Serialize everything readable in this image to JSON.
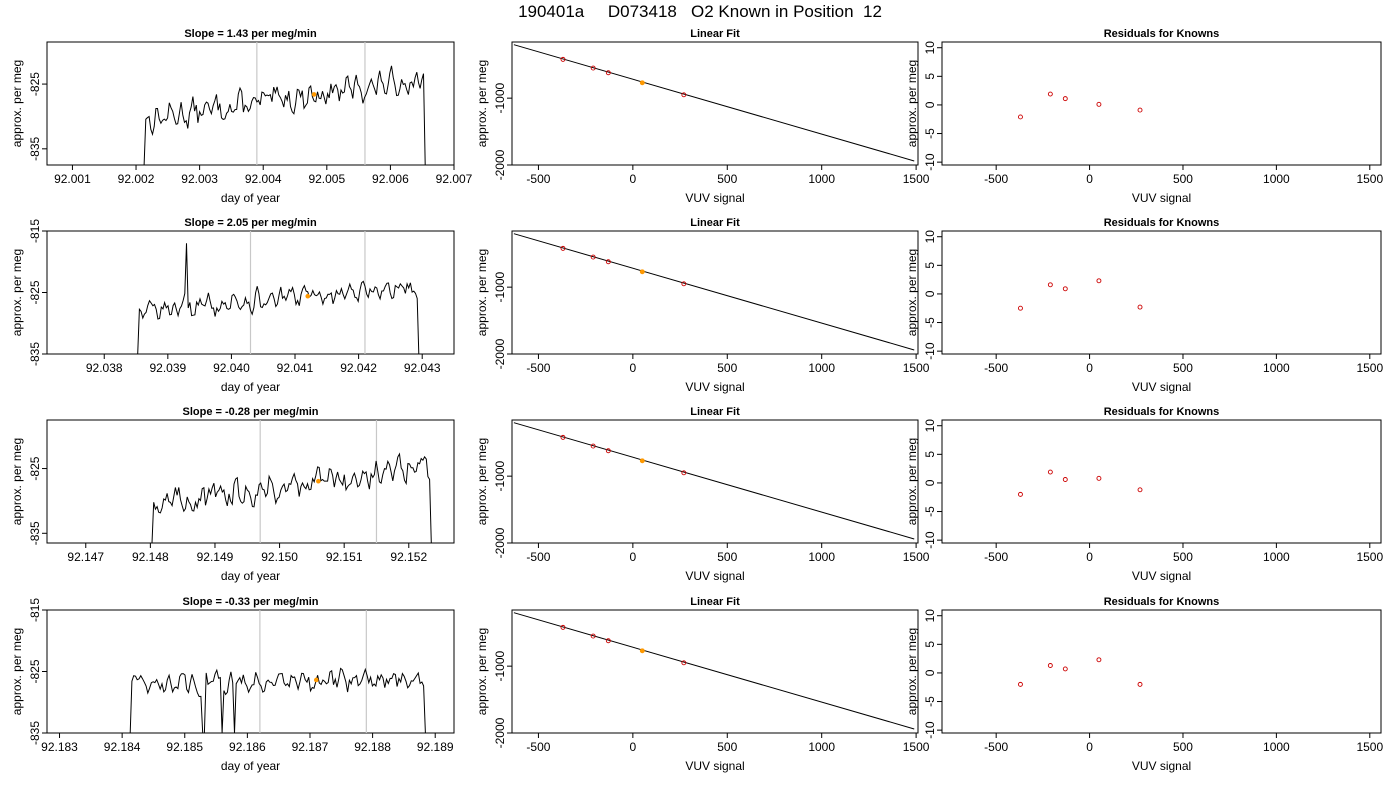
{
  "figure_title": "190401a     D073418   O2 Known in Position  12",
  "colors": {
    "trace": "#000000",
    "marker": "#ff9900",
    "grid_line": "#c8c8c8",
    "fit_points": "#cc0000"
  },
  "chart_data": [
    {
      "type": "line",
      "title": "Slope =  1.43  per meg/min",
      "xlabel": "day of year",
      "ylabel": "approx. per meg",
      "xlim": [
        92.0006,
        92.007
      ],
      "ylim": [
        -837.5,
        -818.5
      ],
      "xticks": [
        "92.001",
        "92.002",
        "92.003",
        "92.004",
        "92.005",
        "92.006",
        "92.007"
      ],
      "yticks": [
        "-825",
        "-835"
      ],
      "data_start": 92.0021,
      "data_end": 92.0066,
      "vlines": [
        92.0039,
        92.0056
      ],
      "marker_x": 92.0048,
      "baseline": -830.5,
      "trend": 6.5,
      "noise": 2.2,
      "spikes": [],
      "dips": []
    },
    {
      "type": "line",
      "title": "Slope =  2.05  per meg/min",
      "xlabel": "day of year",
      "ylabel": "approx. per meg",
      "xlim": [
        92.0371,
        92.0435
      ],
      "ylim": [
        -835,
        -815
      ],
      "xticks": [
        "92.038",
        "92.039",
        "92.040",
        "92.041",
        "92.042",
        "92.043"
      ],
      "yticks": [
        "-815",
        "-825",
        "-835"
      ],
      "data_start": 92.0385,
      "data_end": 92.043,
      "vlines": [
        92.0403,
        92.0421
      ],
      "marker_x": 92.0412,
      "baseline": -828,
      "trend": 4,
      "noise": 1.8,
      "spikes": [
        92.0393
      ],
      "dips": []
    },
    {
      "type": "line",
      "title": "Slope =  -0.28  per meg/min",
      "xlabel": "day of year",
      "ylabel": "approx. per meg",
      "xlim": [
        92.1464,
        92.1527
      ],
      "ylim": [
        -836.5,
        -817.5
      ],
      "xticks": [
        "92.147",
        "92.148",
        "92.149",
        "92.150",
        "92.151",
        "92.152"
      ],
      "yticks": [
        "-825",
        "-835"
      ],
      "data_start": 92.148,
      "data_end": 92.1524,
      "vlines": [
        92.1497,
        92.1515
      ],
      "marker_x": 92.1506,
      "baseline": -830.5,
      "trend": 6,
      "noise": 2.2,
      "spikes": [],
      "dips": []
    },
    {
      "type": "line",
      "title": "Slope =  -0.33  per meg/min",
      "xlabel": "day of year",
      "ylabel": "approx. per meg",
      "xlim": [
        92.1828,
        92.1893
      ],
      "ylim": [
        -835,
        -815
      ],
      "xticks": [
        "92.183",
        "92.184",
        "92.185",
        "92.186",
        "92.187",
        "92.188",
        "92.189"
      ],
      "yticks": [
        "-815",
        "-825",
        "-835"
      ],
      "data_start": 92.1841,
      "data_end": 92.1889,
      "vlines": [
        92.1862,
        92.1879
      ],
      "marker_x": 92.1871,
      "baseline": -827,
      "trend": 1,
      "noise": 1.8,
      "spikes": [],
      "dips": [
        92.1853,
        92.1856,
        92.1858
      ]
    },
    {
      "type": "line",
      "title": "Linear Fit",
      "xlabel": "VUV signal",
      "ylabel": "approx. per meg",
      "xlim": [
        -640,
        1510
      ],
      "ylim": [
        -2000,
        -160
      ],
      "xticks": [
        "-500",
        "0",
        "500",
        "1000",
        "1500"
      ],
      "yticks": [
        "-1000",
        "-2000"
      ],
      "line": {
        "x": [
          -630,
          1490
        ],
        "y": [
          -200,
          -1940
        ]
      },
      "points": [
        {
          "x": -370,
          "y": -420
        },
        {
          "x": -210,
          "y": -550
        },
        {
          "x": -130,
          "y": -620
        },
        {
          "x": 50,
          "y": -770
        },
        {
          "x": 270,
          "y": -950
        }
      ],
      "highlight_index": 3
    },
    {
      "type": "line",
      "title": "Linear Fit",
      "xlabel": "VUV signal",
      "ylabel": "approx. per meg",
      "xlim": [
        -640,
        1510
      ],
      "ylim": [
        -2000,
        -160
      ],
      "xticks": [
        "-500",
        "0",
        "500",
        "1000",
        "1500"
      ],
      "yticks": [
        "-1000",
        "-2000"
      ],
      "line": {
        "x": [
          -630,
          1490
        ],
        "y": [
          -200,
          -1940
        ]
      },
      "points": [
        {
          "x": -370,
          "y": -420
        },
        {
          "x": -210,
          "y": -550
        },
        {
          "x": -130,
          "y": -620
        },
        {
          "x": 50,
          "y": -770
        },
        {
          "x": 270,
          "y": -950
        }
      ],
      "highlight_index": 3
    },
    {
      "type": "line",
      "title": "Linear Fit",
      "xlabel": "VUV signal",
      "ylabel": "approx. per meg",
      "xlim": [
        -640,
        1510
      ],
      "ylim": [
        -2000,
        -160
      ],
      "xticks": [
        "-500",
        "0",
        "500",
        "1000",
        "1500"
      ],
      "yticks": [
        "-1000",
        "-2000"
      ],
      "line": {
        "x": [
          -630,
          1490
        ],
        "y": [
          -200,
          -1940
        ]
      },
      "points": [
        {
          "x": -370,
          "y": -420
        },
        {
          "x": -210,
          "y": -550
        },
        {
          "x": -130,
          "y": -620
        },
        {
          "x": 50,
          "y": -770
        },
        {
          "x": 270,
          "y": -950
        }
      ],
      "highlight_index": 3
    },
    {
      "type": "line",
      "title": "Linear Fit",
      "xlabel": "VUV signal",
      "ylabel": "approx. per meg",
      "xlim": [
        -640,
        1510
      ],
      "ylim": [
        -2000,
        -160
      ],
      "xticks": [
        "-500",
        "0",
        "500",
        "1000",
        "1500"
      ],
      "yticks": [
        "-1000",
        "-2000"
      ],
      "line": {
        "x": [
          -630,
          1490
        ],
        "y": [
          -200,
          -1940
        ]
      },
      "points": [
        {
          "x": -370,
          "y": -420
        },
        {
          "x": -210,
          "y": -550
        },
        {
          "x": -130,
          "y": -620
        },
        {
          "x": 50,
          "y": -770
        },
        {
          "x": 270,
          "y": -950
        }
      ],
      "highlight_index": 3
    },
    {
      "type": "scatter",
      "title": "Residuals for Knowns",
      "xlabel": "VUV signal",
      "ylabel": "approx. per meg",
      "xlim": [
        -790,
        1560
      ],
      "ylim": [
        -10.5,
        11
      ],
      "xticks": [
        "-500",
        "0",
        "500",
        "1000",
        "1500"
      ],
      "yticks": [
        "10",
        "5",
        "0",
        "-5",
        "-10"
      ],
      "points": [
        {
          "x": -370,
          "y": -2.1
        },
        {
          "x": -210,
          "y": 1.9
        },
        {
          "x": -130,
          "y": 1.1
        },
        {
          "x": 50,
          "y": 0.1
        },
        {
          "x": 270,
          "y": -0.9
        }
      ]
    },
    {
      "type": "scatter",
      "title": "Residuals for Knowns",
      "xlabel": "VUV signal",
      "ylabel": "approx. per meg",
      "xlim": [
        -790,
        1560
      ],
      "ylim": [
        -10.5,
        11
      ],
      "xticks": [
        "-500",
        "0",
        "500",
        "1000",
        "1500"
      ],
      "yticks": [
        "10",
        "5",
        "0",
        "-5",
        "-10"
      ],
      "points": [
        {
          "x": -370,
          "y": -2.5
        },
        {
          "x": -210,
          "y": 1.6
        },
        {
          "x": -130,
          "y": 0.9
        },
        {
          "x": 50,
          "y": 2.3
        },
        {
          "x": 270,
          "y": -2.3
        }
      ]
    },
    {
      "type": "scatter",
      "title": "Residuals for Knowns",
      "xlabel": "VUV signal",
      "ylabel": "approx. per meg",
      "xlim": [
        -790,
        1560
      ],
      "ylim": [
        -10.5,
        11
      ],
      "xticks": [
        "-500",
        "0",
        "500",
        "1000",
        "1500"
      ],
      "yticks": [
        "10",
        "5",
        "0",
        "-5",
        "-10"
      ],
      "points": [
        {
          "x": -370,
          "y": -2.0
        },
        {
          "x": -210,
          "y": 1.9
        },
        {
          "x": -130,
          "y": 0.6
        },
        {
          "x": 50,
          "y": 0.8
        },
        {
          "x": 270,
          "y": -1.2
        }
      ]
    },
    {
      "type": "scatter",
      "title": "Residuals for Knowns",
      "xlabel": "VUV signal",
      "ylabel": "approx. per meg",
      "xlim": [
        -790,
        1560
      ],
      "ylim": [
        -10.5,
        11
      ],
      "xticks": [
        "-500",
        "0",
        "500",
        "1000",
        "1500"
      ],
      "yticks": [
        "10",
        "5",
        "0",
        "-5",
        "-10"
      ],
      "points": [
        {
          "x": -370,
          "y": -2.0
        },
        {
          "x": -210,
          "y": 1.3
        },
        {
          "x": -130,
          "y": 0.7
        },
        {
          "x": 50,
          "y": 2.3
        },
        {
          "x": 270,
          "y": -2.0
        }
      ]
    }
  ]
}
